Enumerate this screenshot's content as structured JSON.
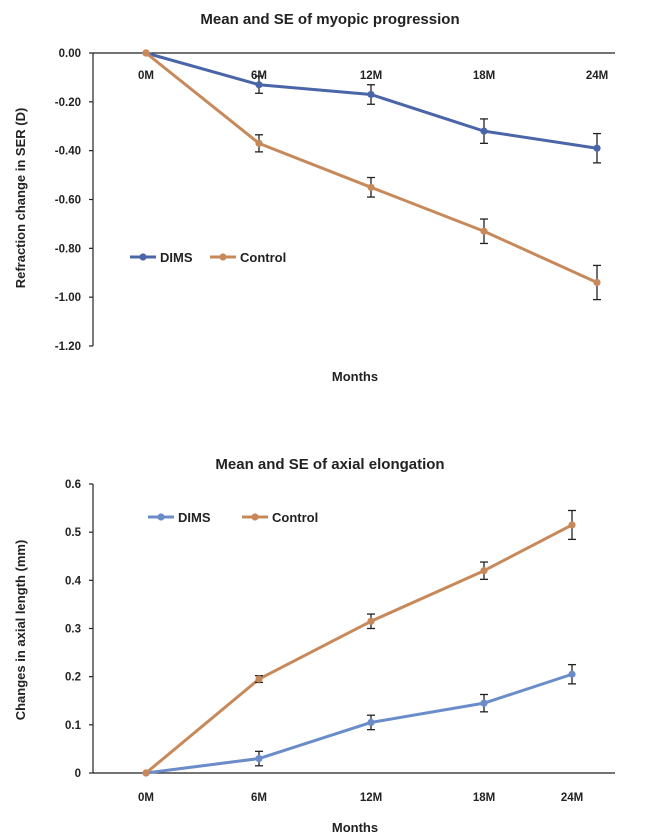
{
  "chart_data": [
    {
      "type": "line",
      "title": "Mean and SE of myopic progression",
      "xlabel": "Months",
      "ylabel": "Refraction change in SER (D)",
      "categories": [
        "0M",
        "6M",
        "12M",
        "18M",
        "24M"
      ],
      "ylim": [
        -1.2,
        0.0
      ],
      "yticks": [
        "0.00",
        "-0.20",
        "-0.40",
        "-0.60",
        "-0.80",
        "-1.00",
        "-1.20"
      ],
      "x_tick_position": "top",
      "grid": false,
      "legend_position": "center-left",
      "series": [
        {
          "name": "DIMS",
          "color": "#4a65a8",
          "values": [
            0.0,
            -0.13,
            -0.17,
            -0.32,
            -0.39
          ],
          "se": [
            0.0,
            0.035,
            0.04,
            0.05,
            0.06
          ]
        },
        {
          "name": "Control",
          "color": "#c8895a",
          "values": [
            0.0,
            -0.37,
            -0.55,
            -0.73,
            -0.94
          ],
          "se": [
            0.0,
            0.035,
            0.04,
            0.05,
            0.07
          ]
        }
      ]
    },
    {
      "type": "line",
      "title": "Mean and SE of axial elongation",
      "xlabel": "Months",
      "ylabel": "Changes in axial length (mm)",
      "categories": [
        "0M",
        "6M",
        "12M",
        "18M",
        "24M"
      ],
      "ylim": [
        0,
        0.6
      ],
      "yticks": [
        "0",
        "0.1",
        "0.2",
        "0.3",
        "0.4",
        "0.5",
        "0.6"
      ],
      "x_tick_position": "bottom",
      "grid": false,
      "legend_position": "top-left",
      "series": [
        {
          "name": "DIMS",
          "color": "#6a8cc8",
          "values": [
            0.0,
            0.03,
            0.105,
            0.145,
            0.205
          ],
          "se": [
            0.0,
            0.015,
            0.015,
            0.018,
            0.02
          ]
        },
        {
          "name": "Control",
          "color": "#c8895a",
          "values": [
            0.0,
            0.195,
            0.315,
            0.42,
            0.515
          ],
          "se": [
            0.0,
            0.007,
            0.015,
            0.018,
            0.03
          ]
        }
      ]
    }
  ]
}
